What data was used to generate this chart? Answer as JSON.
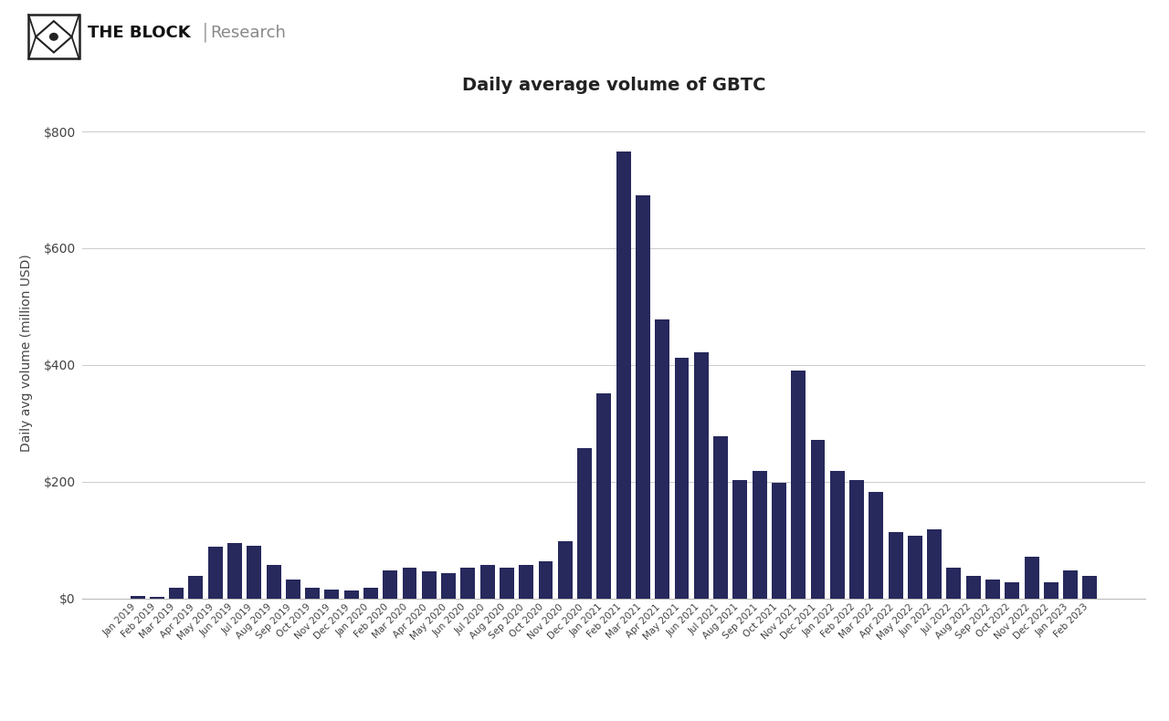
{
  "title": "Daily average volume of GBTC",
  "ylabel": "Daily avg volume (million USD)",
  "bar_color": "#27285c",
  "background_color": "#ffffff",
  "grid_color": "#cccccc",
  "ytick_labels": [
    "$0",
    "$200",
    "$400",
    "$600",
    "$800"
  ],
  "ytick_values": [
    0,
    200,
    400,
    600,
    800
  ],
  "ylim": [
    0,
    840
  ],
  "categories": [
    "Jan 2019",
    "Feb 2019",
    "Mar 2019",
    "Apr 2019",
    "May 2019",
    "Jun 2019",
    "Jul 2019",
    "Aug 2019",
    "Sep 2019",
    "Oct 2019",
    "Nov 2019",
    "Dec 2019",
    "Jan 2020",
    "Feb 2020",
    "Mar 2020",
    "Apr 2020",
    "May 2020",
    "Jun 2020",
    "Jul 2020",
    "Aug 2020",
    "Sep 2020",
    "Oct 2020",
    "Nov 2020",
    "Dec 2020",
    "Jan 2021",
    "Feb 2021",
    "Mar 2021",
    "Apr 2021",
    "May 2021",
    "Jun 2021",
    "Jul 2021",
    "Aug 2021",
    "Sep 2021",
    "Oct 2021",
    "Nov 2021",
    "Dec 2021",
    "Jan 2022",
    "Feb 2022",
    "Mar 2022",
    "Apr 2022",
    "May 2022",
    "Jun 2022",
    "Jul 2022",
    "Aug 2022",
    "Sep 2022",
    "Oct 2022",
    "Nov 2022",
    "Dec 2022",
    "Jan 2023",
    "Feb 2023"
  ],
  "values": [
    5,
    3,
    18,
    38,
    88,
    95,
    90,
    58,
    32,
    18,
    15,
    13,
    18,
    48,
    52,
    46,
    44,
    53,
    58,
    53,
    58,
    63,
    98,
    258,
    352,
    765,
    690,
    478,
    412,
    422,
    278,
    203,
    218,
    198,
    390,
    272,
    218,
    203,
    183,
    113,
    108,
    118,
    52,
    38,
    32,
    28,
    72,
    28,
    48,
    38
  ]
}
